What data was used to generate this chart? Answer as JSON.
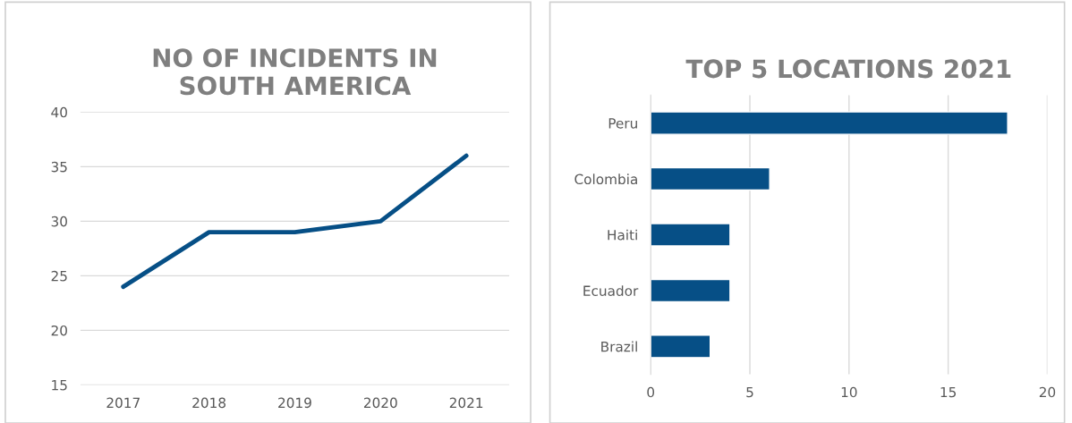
{
  "chart_data": [
    {
      "type": "line",
      "title": "NO OF INCIDENTS IN\nSOUTH AMERICA",
      "categories": [
        "2017",
        "2018",
        "2019",
        "2020",
        "2021"
      ],
      "series": [
        {
          "color": "#064f86",
          "values": [
            24,
            29,
            29,
            30,
            36
          ]
        }
      ],
      "ylim": [
        15,
        40
      ],
      "yticks": [
        15,
        20,
        25,
        30,
        35,
        40
      ],
      "grid": "y"
    },
    {
      "type": "bar",
      "orientation": "horizontal",
      "title": "TOP 5 LOCATIONS 2021",
      "categories": [
        "Peru",
        "Colombia",
        "Haiti",
        "Ecuador",
        "Brazil"
      ],
      "series": [
        {
          "color": "#064f86",
          "values": [
            18,
            6,
            4,
            4,
            3
          ]
        }
      ],
      "xlim": [
        0,
        20
      ],
      "xticks": [
        0,
        5,
        10,
        15,
        20
      ],
      "grid": "x"
    }
  ]
}
